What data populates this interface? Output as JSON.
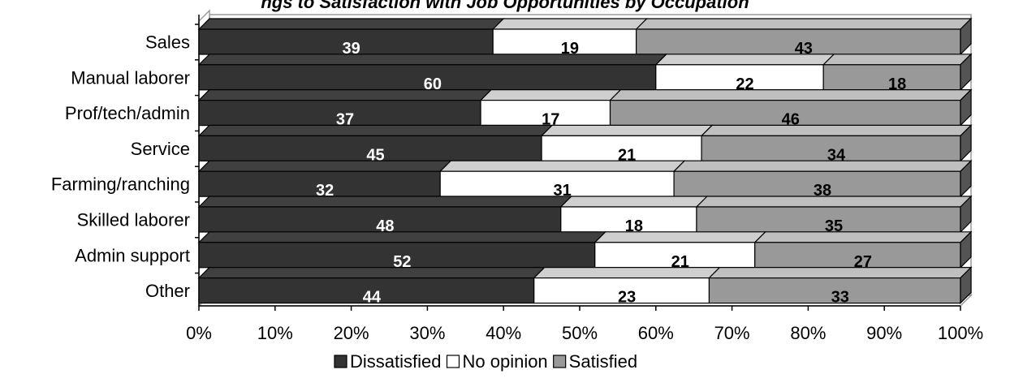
{
  "title": "ngs to Satisfaction with Job Opportunities by Occupation",
  "chart_data": {
    "type": "bar",
    "orientation": "horizontal",
    "stacked": "percent",
    "style": "3d",
    "categories": [
      "Sales",
      "Manual laborer",
      "Prof/tech/admin",
      "Service",
      "Farming/ranching",
      "Skilled laborer",
      "Admin support",
      "Other"
    ],
    "series": [
      {
        "name": "Dissatisfied",
        "color": "#333333",
        "label_color": "#ffffff",
        "values": [
          39,
          60,
          37,
          45,
          32,
          48,
          52,
          44
        ]
      },
      {
        "name": "No opinion",
        "color": "#ffffff",
        "label_color": "#000000",
        "values": [
          19,
          22,
          17,
          21,
          31,
          18,
          21,
          23
        ]
      },
      {
        "name": "Satisfied",
        "color": "#999999",
        "label_color": "#000000",
        "values": [
          43,
          18,
          46,
          34,
          38,
          35,
          27,
          33
        ]
      }
    ],
    "x_ticks": [
      "0%",
      "10%",
      "20%",
      "30%",
      "40%",
      "50%",
      "60%",
      "70%",
      "80%",
      "90%",
      "100%"
    ],
    "xlim": [
      0,
      100
    ],
    "legend_position": "bottom",
    "grid": false
  }
}
